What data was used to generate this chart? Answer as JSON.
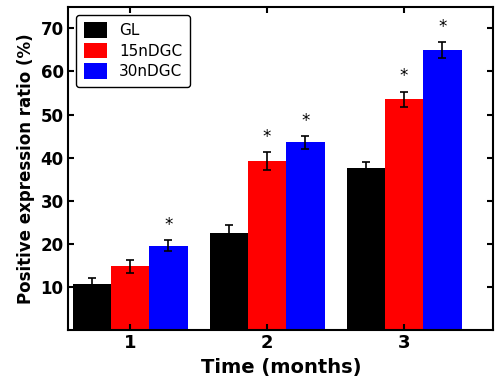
{
  "groups": [
    1,
    2,
    3
  ],
  "group_labels": [
    "1",
    "2",
    "3"
  ],
  "series": {
    "GL": {
      "values": [
        10.7,
        22.5,
        37.5
      ],
      "errors": [
        1.2,
        1.8,
        1.5
      ],
      "color": "#000000",
      "label": "GL"
    },
    "15nDGC": {
      "values": [
        14.7,
        39.2,
        53.5
      ],
      "errors": [
        1.5,
        2.0,
        1.8
      ],
      "color": "#ff0000",
      "label": "15nDGC"
    },
    "30nDGC": {
      "values": [
        19.5,
        43.5,
        65.0
      ],
      "errors": [
        1.3,
        1.5,
        1.8
      ],
      "color": "#0000ff",
      "label": "30nDGC"
    }
  },
  "significance": {
    "GL": [
      false,
      false,
      false
    ],
    "15nDGC": [
      false,
      true,
      true
    ],
    "30nDGC": [
      true,
      true,
      true
    ]
  },
  "ylabel": "Positive expression ratio (%)",
  "xlabel": "Time (months)",
  "ylim": [
    0,
    75
  ],
  "yticks": [
    10,
    20,
    30,
    40,
    50,
    60,
    70
  ],
  "bar_width": 0.28,
  "legend_pos": "upper left",
  "background_color": "#ffffff"
}
